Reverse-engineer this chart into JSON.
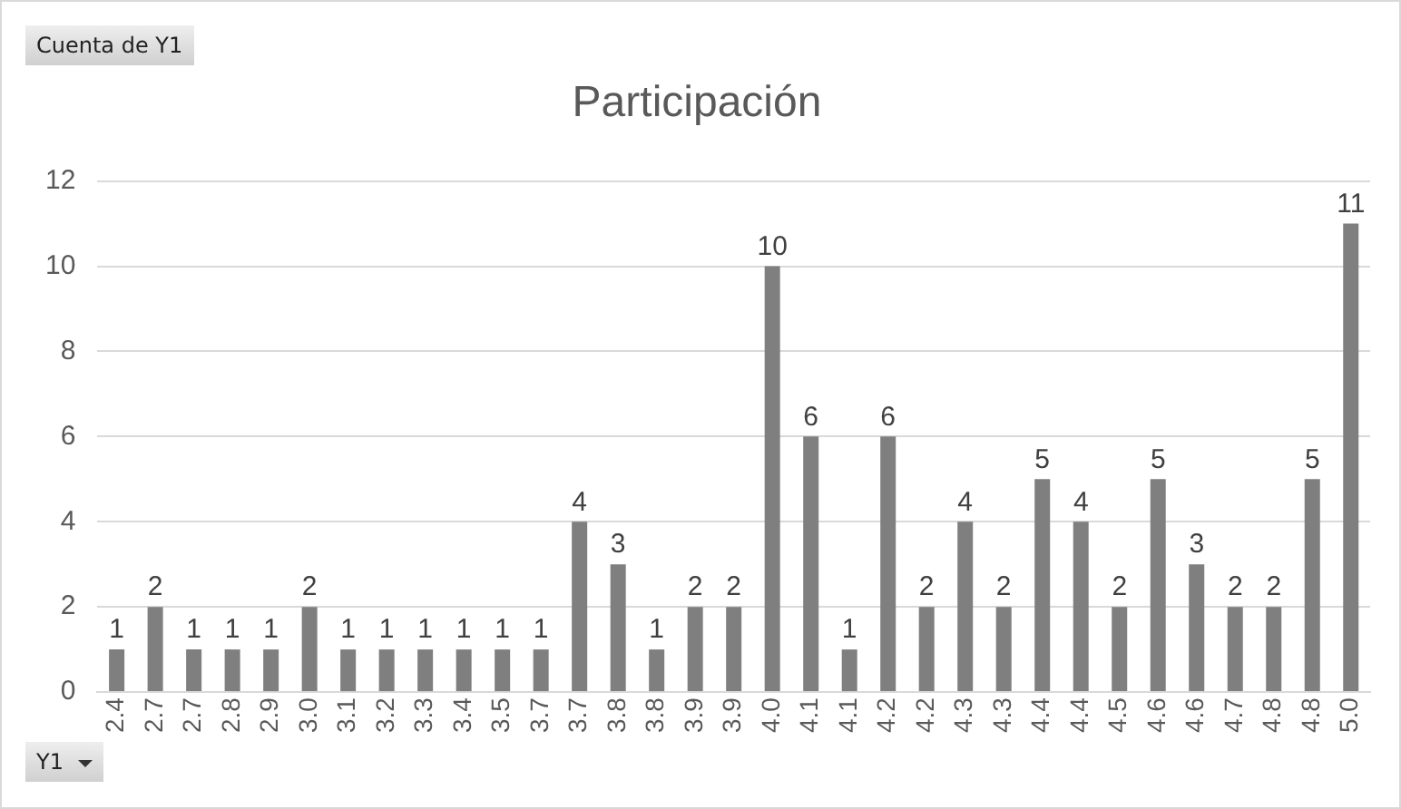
{
  "chart_data": {
    "type": "bar",
    "title": "Participación",
    "categories": [
      "2.4",
      "2.7",
      "2.7",
      "2.8",
      "2.9",
      "3.0",
      "3.1",
      "3.2",
      "3.3",
      "3.4",
      "3.5",
      "3.7",
      "3.7",
      "3.8",
      "3.8",
      "3.9",
      "3.9",
      "4.0",
      "4.1",
      "4.1",
      "4.2",
      "4.2",
      "4.3",
      "4.3",
      "4.4",
      "4.4",
      "4.5",
      "4.6",
      "4.6",
      "4.7",
      "4.8",
      "4.8",
      "5.0"
    ],
    "values": [
      1,
      2,
      1,
      1,
      1,
      2,
      1,
      1,
      1,
      1,
      1,
      1,
      4,
      3,
      1,
      2,
      2,
      10,
      6,
      1,
      6,
      2,
      4,
      2,
      5,
      4,
      2,
      5,
      3,
      2,
      2,
      5,
      11
    ],
    "color": "#7f7f7f",
    "ylim": [
      0,
      12
    ],
    "yticks": [
      0,
      2,
      4,
      6,
      8,
      10,
      12
    ],
    "grid": "y",
    "legend": false,
    "data_labels": true,
    "annotations": [
      "Cuenta de Y1",
      "Y1"
    ]
  }
}
